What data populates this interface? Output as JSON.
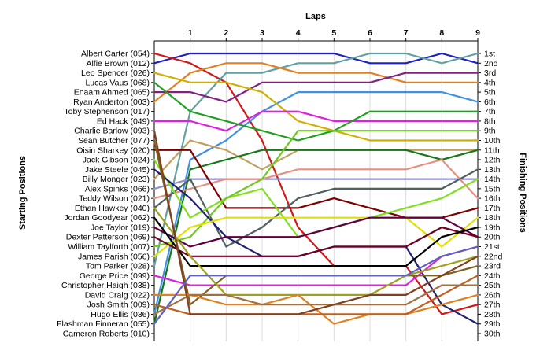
{
  "chart_data": {
    "type": "line",
    "title": "Laps",
    "ylabel_left": "Starting Positions",
    "ylabel_right": "Finishing Positions",
    "x_ticks": [
      1,
      2,
      3,
      4,
      5,
      6,
      7,
      8,
      9
    ],
    "starting_grid": [
      "Albert Carter (054)",
      "Alfie Brown (012)",
      "Leo Spencer (026)",
      "Lucas Vaus (068)",
      "Enaam Ahmed (065)",
      "Ryan Anderton (003)",
      "Toby Stephenson (017)",
      "Ed Hack (049)",
      "Charlie Barlow (093)",
      "Sean Butcher (077)",
      "Oisin Sharkey (020)",
      "Jack Gibson (024)",
      "Jake Steele (045)",
      "Billy Monger (023)",
      "Alex Spinks (066)",
      "Teddy Wilson (021)",
      "Ethan Hawkey (040)",
      "Jordan Goodyear (062)",
      "Joe Taylor (019)",
      "Dexter Patterson (069)",
      "William Taylforth (007)",
      "James Parish (056)",
      "Tom Parker (028)",
      "George Price (099)",
      "Christopher Haigh (038)",
      "David Craig (022)",
      "Josh Smith (009)",
      "Hugo Ellis (036)",
      "Flashman Finneran (055)",
      "Cameron Roberts (010)"
    ],
    "finishing_labels": [
      "1st",
      "2nd",
      "3rd",
      "4th",
      "5th",
      "6th",
      "7th",
      "8th",
      "9th",
      "10th",
      "11th",
      "12th",
      "13th",
      "14th",
      "15th",
      "16th",
      "17th",
      "18th",
      "19th",
      "20th",
      "21st",
      "22nd",
      "23rd",
      "24th",
      "25th",
      "26th",
      "27th",
      "28th",
      "29th",
      "30th"
    ],
    "series": [
      {
        "color": "#2020c0",
        "positions": [
          2,
          1,
          1,
          1,
          1,
          1,
          2,
          2,
          1,
          2
        ]
      },
      {
        "color": "#d01818",
        "positions": [
          1,
          2,
          4,
          10,
          19,
          23,
          23,
          23,
          28,
          27
        ]
      },
      {
        "color": "#60a0a0",
        "positions": [
          23,
          7,
          3,
          3,
          2,
          2,
          1,
          1,
          2,
          1
        ]
      },
      {
        "color": "#e08020",
        "positions": [
          6,
          3,
          2,
          2,
          3,
          3,
          3,
          4,
          4,
          4
        ]
      },
      {
        "color": "#802080",
        "positions": [
          5,
          5,
          6,
          4,
          4,
          4,
          4,
          3,
          3,
          3
        ]
      },
      {
        "color": "#4090e0",
        "positions": [
          28,
          12,
          10,
          7,
          5,
          5,
          5,
          5,
          5,
          6
        ]
      },
      {
        "color": "#d0b000",
        "positions": [
          3,
          4,
          4,
          5,
          8,
          9,
          10,
          10,
          10,
          10
        ]
      },
      {
        "color": "#e020e0",
        "positions": [
          8,
          8,
          9,
          7,
          7,
          8,
          8,
          8,
          8,
          8
        ]
      },
      {
        "color": "#20a020",
        "positions": [
          4,
          7,
          8,
          9,
          10,
          9,
          7,
          7,
          7,
          7
        ]
      },
      {
        "color": "#c0a060",
        "positions": [
          14,
          10,
          11,
          13,
          11,
          11,
          11,
          11,
          11,
          11
        ]
      },
      {
        "color": "#187818",
        "positions": [
          29,
          13,
          12,
          11,
          11,
          11,
          11,
          11,
          12,
          11
        ]
      },
      {
        "color": "#9090d0",
        "positions": [
          15,
          14,
          14,
          14,
          14,
          14,
          14,
          14,
          14,
          14
        ]
      },
      {
        "color": "#e89080",
        "positions": [
          16,
          15,
          14,
          14,
          13,
          13,
          13,
          13,
          12,
          16
        ]
      },
      {
        "color": "#800000",
        "positions": [
          11,
          11,
          17,
          17,
          17,
          16,
          17,
          18,
          18,
          17
        ]
      },
      {
        "color": "#506060",
        "positions": [
          17,
          14,
          21,
          19,
          16,
          15,
          15,
          15,
          15,
          13
        ]
      },
      {
        "color": "#80e020",
        "positions": [
          12,
          18,
          16,
          15,
          20,
          19,
          18,
          17,
          16,
          14
        ]
      },
      {
        "color": "#70c820",
        "positions": [
          21,
          20,
          16,
          14,
          9,
          9,
          9,
          9,
          9,
          9
        ]
      },
      {
        "color": "#202070",
        "positions": [
          13,
          16,
          20,
          22,
          22,
          21,
          21,
          21,
          27,
          29
        ]
      },
      {
        "color": "#e0e000",
        "positions": [
          22,
          19,
          18,
          18,
          18,
          18,
          18,
          18,
          21,
          18
        ]
      },
      {
        "color": "#600040",
        "positions": [
          19,
          21,
          20,
          20,
          20,
          19,
          18,
          18,
          18,
          20
        ]
      },
      {
        "color": "#700020",
        "positions": [
          20,
          22,
          22,
          22,
          22,
          21,
          21,
          21,
          19,
          20
        ]
      },
      {
        "color": "#000000",
        "positions": [
          18,
          23,
          23,
          23,
          23,
          23,
          23,
          23,
          20,
          19
        ]
      },
      {
        "color": "#e020e0",
        "positions": [
          24,
          25,
          25,
          25,
          25,
          25,
          25,
          25,
          22,
          21
        ]
      },
      {
        "color": "#806020",
        "positions": [
          10,
          27,
          24,
          24,
          24,
          24,
          24,
          24,
          24,
          23
        ]
      },
      {
        "color": "#a0a020",
        "positions": [
          17,
          22,
          26,
          26,
          26,
          26,
          26,
          24,
          23,
          22
        ]
      },
      {
        "color": "#e08020",
        "positions": [
          26,
          26,
          27,
          27,
          26,
          29,
          28,
          28,
          27,
          26
        ]
      },
      {
        "color": "#c06020",
        "positions": [
          27,
          28,
          28,
          28,
          28,
          28,
          28,
          28,
          26,
          24
        ]
      },
      {
        "color": "#a07040",
        "positions": [
          28,
          26,
          26,
          27,
          27,
          27,
          27,
          27,
          25,
          25
        ]
      },
      {
        "color": "#804020",
        "positions": [
          9,
          28,
          28,
          28,
          28,
          27,
          26,
          26,
          24,
          22
        ]
      },
      {
        "color": "#6060c0",
        "positions": [
          29,
          24,
          24,
          24,
          24,
          24,
          24,
          24,
          22,
          21
        ]
      }
    ]
  }
}
